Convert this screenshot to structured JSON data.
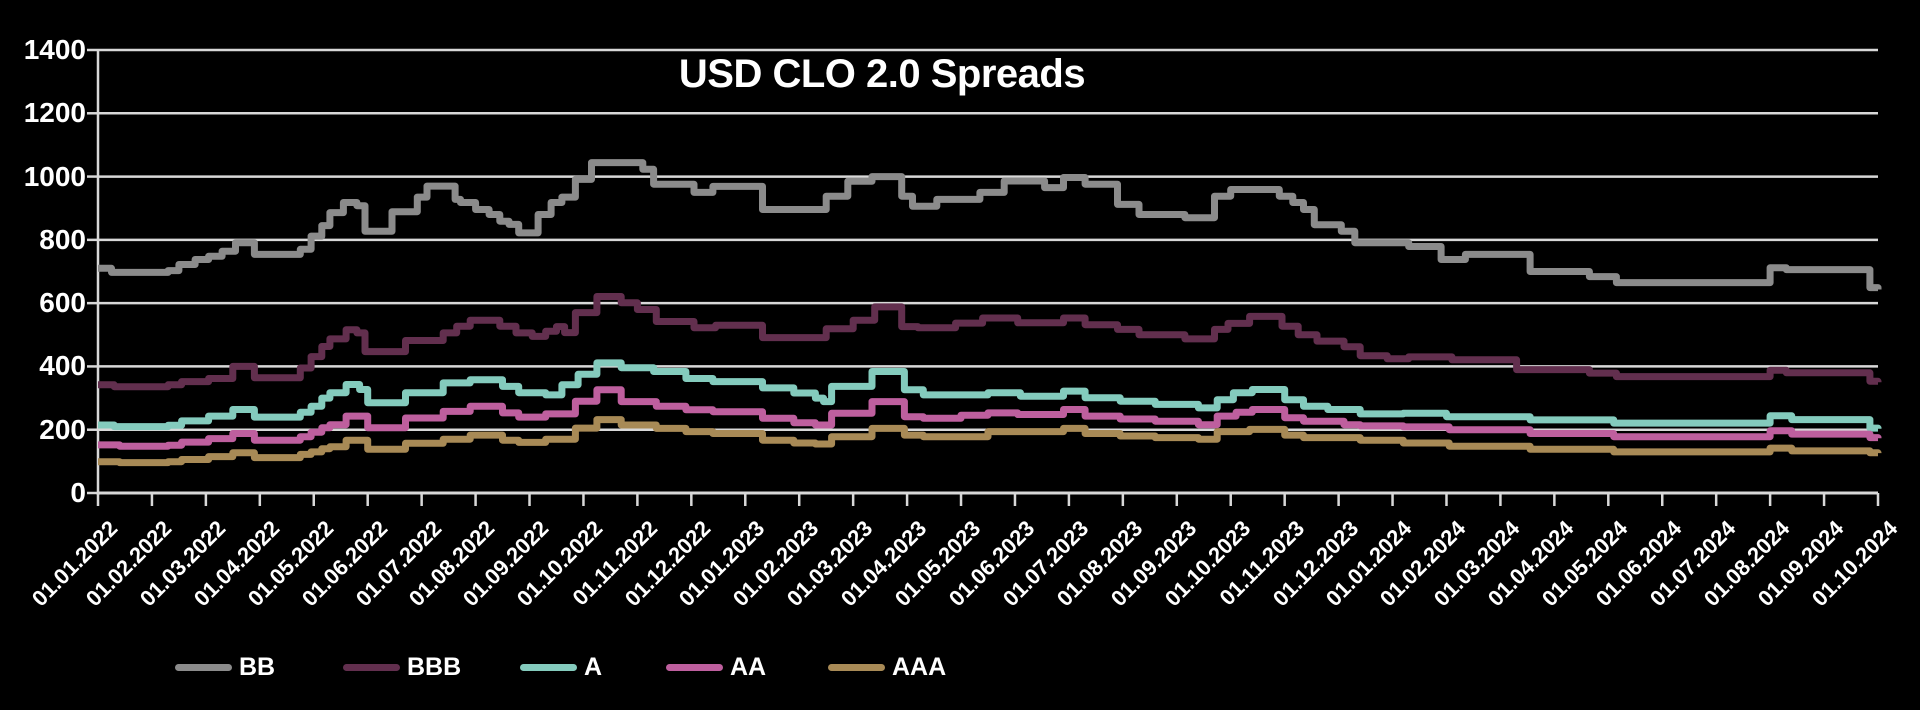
{
  "title": "USD CLO 2.0 Spreads",
  "colors": {
    "background": "#000000",
    "grid": "#D8D8D8",
    "text": "#FFFFFF"
  },
  "chart_data": {
    "type": "line",
    "title": "USD CLO 2.0 Spreads",
    "grid": "horizontal",
    "legend_position": "bottom-left",
    "ylim": [
      0,
      1400
    ],
    "y_ticks": [
      0,
      200,
      400,
      600,
      800,
      1000,
      1200,
      1400
    ],
    "x_unit": "month index, 0 = 01.01.2022 ... 33 = 01.10.2024, values in basis points",
    "x_tick_labels": [
      "01.01.2022",
      "01.02.2022",
      "01.03.2022",
      "01.04.2022",
      "01.05.2022",
      "01.06.2022",
      "01.07.2022",
      "01.08.2022",
      "01.09.2022",
      "01.10.2022",
      "01.11.2022",
      "01.12.2022",
      "01.01.2023",
      "01.02.2023",
      "01.03.2023",
      "01.04.2023",
      "01.05.2023",
      "01.06.2023",
      "01.07.2023",
      "01.08.2023",
      "01.09.2023",
      "01.10.2023",
      "01.11.2023",
      "01.12.2023",
      "01.01.2024",
      "01.02.2024",
      "01.03.2024",
      "01.04.2024",
      "01.05.2024",
      "01.06.2024",
      "01.07.2024",
      "01.08.2024",
      "01.09.2024",
      "01.10.2024"
    ],
    "series": [
      {
        "name": "BB",
        "color": "#8B8B8B",
        "points": [
          [
            0,
            710
          ],
          [
            0.25,
            697
          ],
          [
            1.3,
            703
          ],
          [
            1.5,
            722
          ],
          [
            1.8,
            738
          ],
          [
            2.05,
            748
          ],
          [
            2.3,
            764
          ],
          [
            2.55,
            791
          ],
          [
            2.9,
            754
          ],
          [
            3.75,
            770
          ],
          [
            3.95,
            812
          ],
          [
            4.15,
            845
          ],
          [
            4.3,
            886
          ],
          [
            4.55,
            918
          ],
          [
            4.8,
            908
          ],
          [
            4.95,
            827
          ],
          [
            5.45,
            889
          ],
          [
            5.92,
            935
          ],
          [
            6.1,
            970
          ],
          [
            6.62,
            928
          ],
          [
            6.72,
            918
          ],
          [
            7.0,
            896
          ],
          [
            7.25,
            880
          ],
          [
            7.45,
            859
          ],
          [
            7.62,
            849
          ],
          [
            7.8,
            822
          ],
          [
            8.16,
            880
          ],
          [
            8.4,
            918
          ],
          [
            8.6,
            935
          ],
          [
            8.85,
            991
          ],
          [
            9.15,
            1044
          ],
          [
            10.1,
            1023
          ],
          [
            10.3,
            976
          ],
          [
            11.05,
            950
          ],
          [
            11.4,
            969
          ],
          [
            12.32,
            896
          ],
          [
            13.5,
            938
          ],
          [
            13.9,
            985
          ],
          [
            14.35,
            1000
          ],
          [
            14.9,
            938
          ],
          [
            15.1,
            906
          ],
          [
            15.55,
            928
          ],
          [
            16.35,
            950
          ],
          [
            16.8,
            986
          ],
          [
            17.55,
            965
          ],
          [
            17.9,
            997
          ],
          [
            18.3,
            976
          ],
          [
            18.9,
            912
          ],
          [
            19.3,
            880
          ],
          [
            20.15,
            870
          ],
          [
            20.7,
            938
          ],
          [
            21.0,
            959
          ],
          [
            21.9,
            938
          ],
          [
            22.15,
            918
          ],
          [
            22.35,
            896
          ],
          [
            22.55,
            848
          ],
          [
            23.05,
            827
          ],
          [
            23.3,
            791
          ],
          [
            24.3,
            779
          ],
          [
            24.9,
            738
          ],
          [
            25.35,
            754
          ],
          [
            26.55,
            700
          ],
          [
            27.65,
            684
          ],
          [
            28.15,
            665
          ],
          [
            31.0,
            712
          ],
          [
            31.3,
            706
          ],
          [
            32.85,
            649
          ],
          [
            33,
            643
          ]
        ]
      },
      {
        "name": "BBB",
        "color": "#622F4E",
        "points": [
          [
            0,
            342
          ],
          [
            0.3,
            336
          ],
          [
            1.3,
            342
          ],
          [
            1.55,
            352
          ],
          [
            2.05,
            362
          ],
          [
            2.5,
            400
          ],
          [
            2.9,
            364
          ],
          [
            3.75,
            395
          ],
          [
            3.95,
            431
          ],
          [
            4.15,
            463
          ],
          [
            4.3,
            487
          ],
          [
            4.6,
            516
          ],
          [
            4.8,
            506
          ],
          [
            4.95,
            447
          ],
          [
            5.7,
            482
          ],
          [
            6.4,
            506
          ],
          [
            6.65,
            527
          ],
          [
            6.9,
            546
          ],
          [
            7.45,
            527
          ],
          [
            7.75,
            506
          ],
          [
            8.05,
            495
          ],
          [
            8.3,
            511
          ],
          [
            8.5,
            526
          ],
          [
            8.65,
            507
          ],
          [
            8.85,
            570
          ],
          [
            9.25,
            621
          ],
          [
            9.7,
            601
          ],
          [
            10.0,
            580
          ],
          [
            10.35,
            542
          ],
          [
            11.05,
            522
          ],
          [
            11.45,
            530
          ],
          [
            12.32,
            491
          ],
          [
            13.5,
            519
          ],
          [
            14.0,
            546
          ],
          [
            14.4,
            588
          ],
          [
            14.9,
            526
          ],
          [
            15.2,
            522
          ],
          [
            15.9,
            537
          ],
          [
            16.4,
            553
          ],
          [
            17.05,
            538
          ],
          [
            17.9,
            553
          ],
          [
            18.3,
            532
          ],
          [
            18.9,
            517
          ],
          [
            19.3,
            500
          ],
          [
            20.15,
            487
          ],
          [
            20.7,
            517
          ],
          [
            20.95,
            536
          ],
          [
            21.35,
            558
          ],
          [
            21.95,
            527
          ],
          [
            22.25,
            500
          ],
          [
            22.6,
            480
          ],
          [
            23.1,
            462
          ],
          [
            23.4,
            434
          ],
          [
            23.9,
            424
          ],
          [
            24.3,
            430
          ],
          [
            25.1,
            421
          ],
          [
            26.3,
            390
          ],
          [
            27.65,
            379
          ],
          [
            28.15,
            368
          ],
          [
            31.0,
            388
          ],
          [
            31.3,
            380
          ],
          [
            32.85,
            353
          ],
          [
            33,
            350
          ]
        ]
      },
      {
        "name": "A",
        "color": "#84CBBD",
        "points": [
          [
            0,
            215
          ],
          [
            0.3,
            210
          ],
          [
            1.3,
            214
          ],
          [
            1.55,
            228
          ],
          [
            2.05,
            243
          ],
          [
            2.5,
            264
          ],
          [
            2.9,
            240
          ],
          [
            3.75,
            255
          ],
          [
            3.95,
            274
          ],
          [
            4.15,
            300
          ],
          [
            4.3,
            317
          ],
          [
            4.6,
            343
          ],
          [
            4.85,
            327
          ],
          [
            5.0,
            285
          ],
          [
            5.7,
            317
          ],
          [
            6.4,
            348
          ],
          [
            6.9,
            358
          ],
          [
            7.5,
            337
          ],
          [
            7.8,
            317
          ],
          [
            8.3,
            310
          ],
          [
            8.6,
            342
          ],
          [
            8.9,
            375
          ],
          [
            9.25,
            411
          ],
          [
            9.7,
            396
          ],
          [
            10.3,
            384
          ],
          [
            10.9,
            362
          ],
          [
            11.4,
            352
          ],
          [
            12.32,
            332
          ],
          [
            12.9,
            316
          ],
          [
            13.3,
            300
          ],
          [
            13.45,
            289
          ],
          [
            13.6,
            337
          ],
          [
            14.35,
            384
          ],
          [
            14.95,
            326
          ],
          [
            15.3,
            310
          ],
          [
            16.5,
            317
          ],
          [
            17.1,
            306
          ],
          [
            17.9,
            322
          ],
          [
            18.3,
            301
          ],
          [
            18.95,
            290
          ],
          [
            19.6,
            280
          ],
          [
            20.4,
            269
          ],
          [
            20.75,
            295
          ],
          [
            21.05,
            317
          ],
          [
            21.4,
            327
          ],
          [
            22.0,
            295
          ],
          [
            22.35,
            274
          ],
          [
            22.8,
            264
          ],
          [
            23.4,
            250
          ],
          [
            24.2,
            252
          ],
          [
            25.0,
            241
          ],
          [
            26.55,
            231
          ],
          [
            28.1,
            221
          ],
          [
            31.0,
            244
          ],
          [
            31.4,
            232
          ],
          [
            32.85,
            205
          ],
          [
            33,
            203
          ]
        ]
      },
      {
        "name": "AA",
        "color": "#BE5F9E",
        "points": [
          [
            0,
            152
          ],
          [
            0.4,
            148
          ],
          [
            1.3,
            151
          ],
          [
            1.55,
            161
          ],
          [
            2.05,
            172
          ],
          [
            2.5,
            188
          ],
          [
            2.9,
            167
          ],
          [
            3.75,
            178
          ],
          [
            3.95,
            192
          ],
          [
            4.15,
            206
          ],
          [
            4.3,
            216
          ],
          [
            4.6,
            243
          ],
          [
            5.0,
            206
          ],
          [
            5.7,
            237
          ],
          [
            6.4,
            258
          ],
          [
            6.9,
            274
          ],
          [
            7.5,
            253
          ],
          [
            7.8,
            240
          ],
          [
            8.3,
            250
          ],
          [
            8.85,
            290
          ],
          [
            9.25,
            326
          ],
          [
            9.7,
            289
          ],
          [
            10.35,
            274
          ],
          [
            10.9,
            263
          ],
          [
            11.4,
            257
          ],
          [
            12.32,
            236
          ],
          [
            12.9,
            222
          ],
          [
            13.3,
            215
          ],
          [
            13.6,
            252
          ],
          [
            14.35,
            289
          ],
          [
            14.95,
            241
          ],
          [
            15.3,
            236
          ],
          [
            16.0,
            246
          ],
          [
            16.5,
            253
          ],
          [
            17.05,
            248
          ],
          [
            17.9,
            264
          ],
          [
            18.3,
            243
          ],
          [
            18.95,
            234
          ],
          [
            19.6,
            227
          ],
          [
            20.4,
            216
          ],
          [
            20.75,
            243
          ],
          [
            21.1,
            255
          ],
          [
            21.4,
            264
          ],
          [
            22.0,
            238
          ],
          [
            22.35,
            227
          ],
          [
            23.1,
            216
          ],
          [
            23.4,
            212
          ],
          [
            24.2,
            209
          ],
          [
            25.05,
            200
          ],
          [
            26.55,
            188
          ],
          [
            28.1,
            178
          ],
          [
            31.0,
            197
          ],
          [
            31.4,
            186
          ],
          [
            32.85,
            175
          ],
          [
            33,
            173
          ]
        ]
      },
      {
        "name": "AAA",
        "color": "#A88A56",
        "points": [
          [
            0,
            99
          ],
          [
            0.4,
            96
          ],
          [
            1.3,
            99
          ],
          [
            1.55,
            106
          ],
          [
            2.05,
            115
          ],
          [
            2.5,
            127
          ],
          [
            2.9,
            112
          ],
          [
            3.75,
            122
          ],
          [
            3.95,
            130
          ],
          [
            4.15,
            140
          ],
          [
            4.3,
            146
          ],
          [
            4.6,
            167
          ],
          [
            5.0,
            138
          ],
          [
            5.7,
            157
          ],
          [
            6.4,
            170
          ],
          [
            6.9,
            183
          ],
          [
            7.5,
            167
          ],
          [
            7.8,
            160
          ],
          [
            8.3,
            170
          ],
          [
            8.85,
            205
          ],
          [
            9.25,
            232
          ],
          [
            9.7,
            215
          ],
          [
            10.35,
            204
          ],
          [
            10.9,
            194
          ],
          [
            11.4,
            188
          ],
          [
            12.32,
            167
          ],
          [
            12.9,
            158
          ],
          [
            13.3,
            155
          ],
          [
            13.6,
            178
          ],
          [
            14.35,
            204
          ],
          [
            14.95,
            183
          ],
          [
            15.3,
            178
          ],
          [
            16.5,
            194
          ],
          [
            17.9,
            204
          ],
          [
            18.3,
            188
          ],
          [
            18.95,
            180
          ],
          [
            19.6,
            175
          ],
          [
            20.4,
            170
          ],
          [
            20.75,
            194
          ],
          [
            21.35,
            201
          ],
          [
            22.0,
            183
          ],
          [
            22.35,
            175
          ],
          [
            23.4,
            167
          ],
          [
            24.2,
            158
          ],
          [
            25.05,
            148
          ],
          [
            26.55,
            138
          ],
          [
            28.1,
            130
          ],
          [
            31.0,
            142
          ],
          [
            31.4,
            133
          ],
          [
            32.85,
            127
          ],
          [
            33,
            126
          ]
        ]
      }
    ]
  },
  "legend": {
    "items": [
      {
        "label": "BB",
        "color": "#8B8B8B"
      },
      {
        "label": "BBB",
        "color": "#622F4E"
      },
      {
        "label": "A",
        "color": "#84CBBD"
      },
      {
        "label": "AA",
        "color": "#BE5F9E"
      },
      {
        "label": "AAA",
        "color": "#A88A56"
      }
    ]
  }
}
